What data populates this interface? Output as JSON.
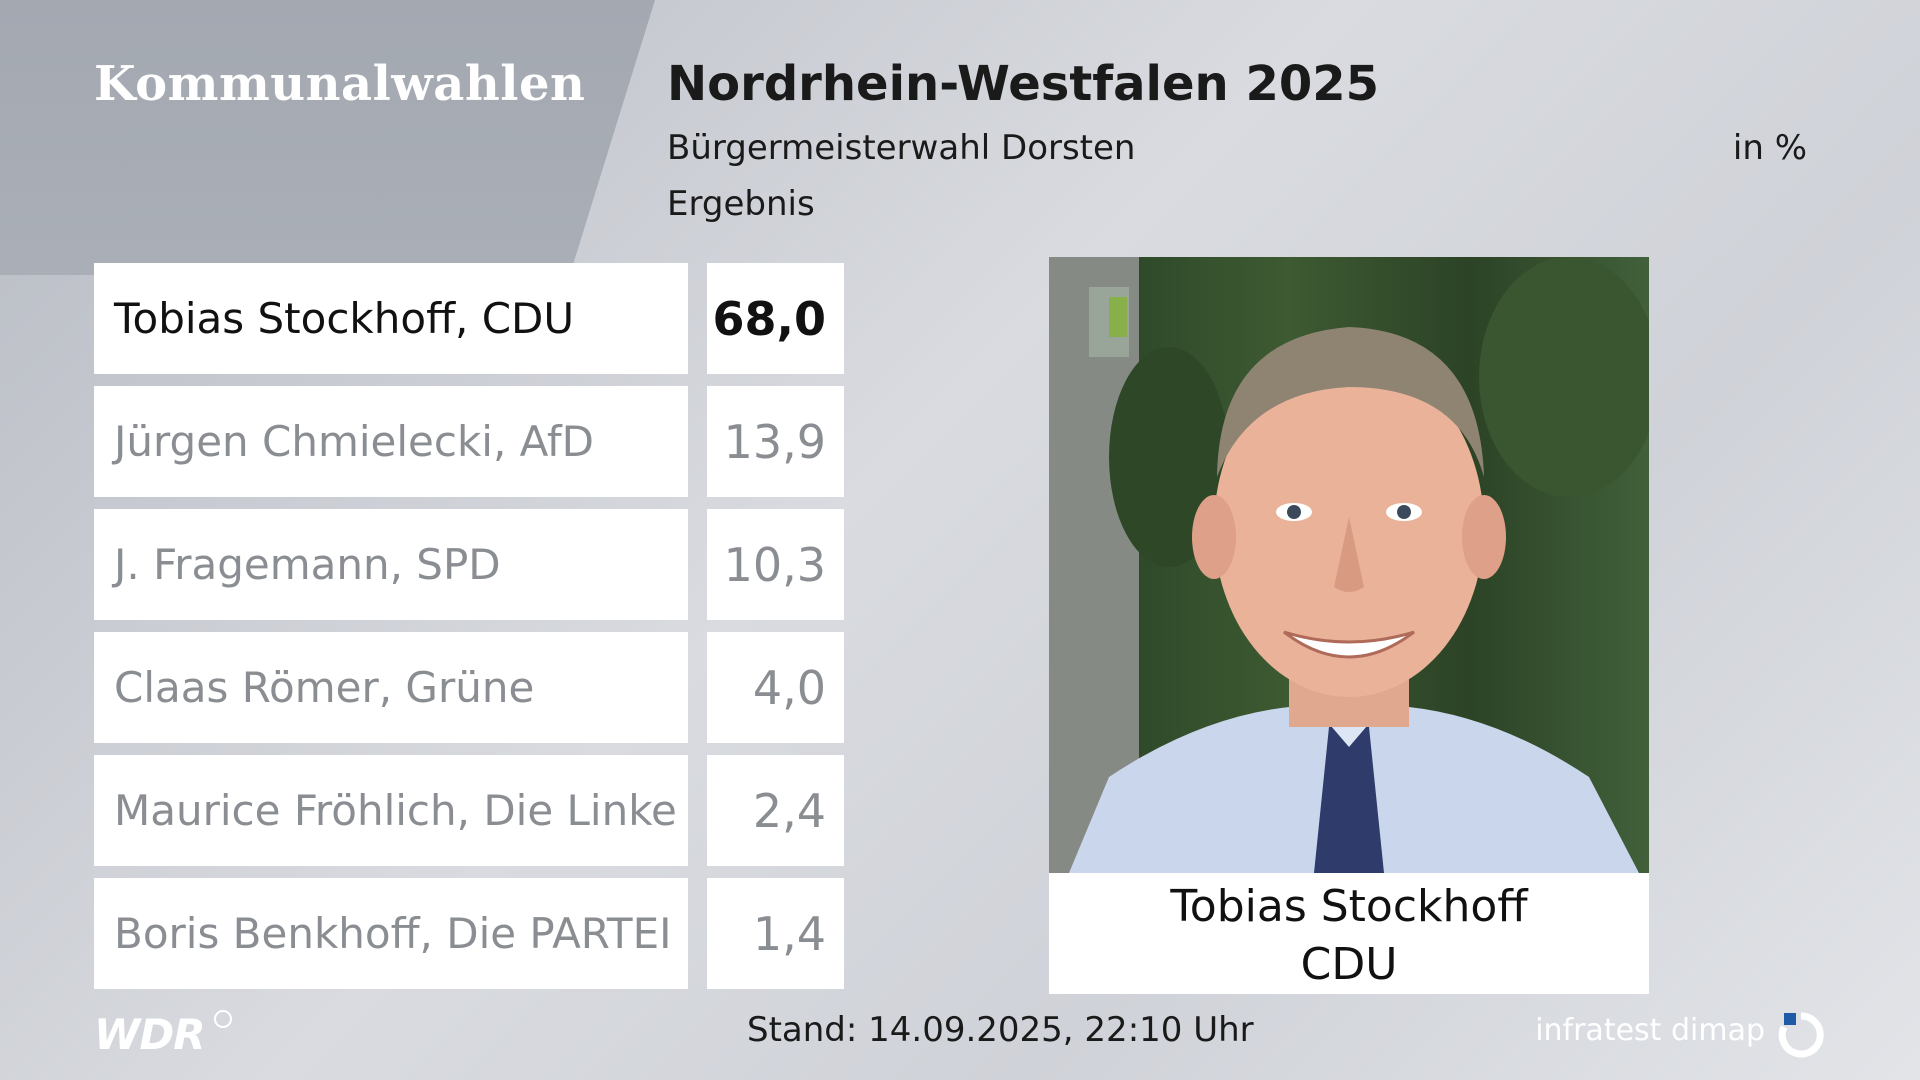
{
  "header": {
    "brand": "Kommunalwahlen",
    "title": "Nordrhein-Westfalen 2025",
    "subtitle": "Bürgermeisterwahl Dorsten",
    "unit": "in %",
    "result_label": "Ergebnis"
  },
  "chart_data": {
    "type": "table",
    "title": "Nordrhein-Westfalen 2025",
    "subtitle": "Bürgermeisterwahl Dorsten",
    "unit": "in %",
    "rows": [
      {
        "name": "Tobias Stockhoff, CDU",
        "value": "68,0"
      },
      {
        "name": "Jürgen Chmielecki, AfD",
        "value": "13,9"
      },
      {
        "name": "J. Fragemann, SPD",
        "value": "10,3"
      },
      {
        "name": "Claas Römer, Grüne",
        "value": "4,0"
      },
      {
        "name": "Maurice Fröhlich, Die Linke",
        "value": "2,4"
      },
      {
        "name": "Boris Benkhoff, Die PARTEI",
        "value": "1,4"
      }
    ]
  },
  "winner": {
    "name": "Tobias Stockhoff",
    "party": "CDU"
  },
  "footer": {
    "broadcaster": "WDR",
    "stand": "Stand: 14.09.2025, 22:10 Uhr",
    "pollster": "infratest dimap"
  }
}
